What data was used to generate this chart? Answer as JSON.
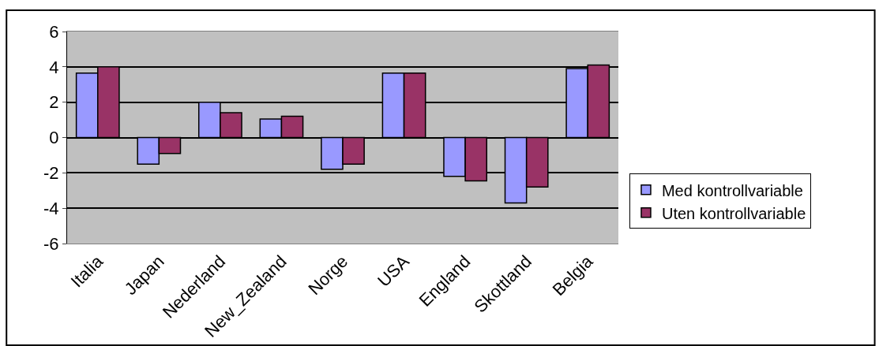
{
  "chart_data": {
    "type": "bar",
    "categories": [
      "Italia",
      "Japan",
      "Nederland",
      "New_Zealand",
      "Norge",
      "USA",
      "England",
      "Skottland",
      "Belgia"
    ],
    "series": [
      {
        "name": "Med kontrollvariable",
        "color": "#9999ff",
        "values": [
          3.65,
          -1.5,
          2.0,
          1.05,
          -1.8,
          3.65,
          -2.2,
          -3.7,
          3.9
        ]
      },
      {
        "name": "Uten kontrollvariable",
        "color": "#993366",
        "values": [
          4.0,
          -0.9,
          1.4,
          1.2,
          -1.5,
          3.65,
          -2.45,
          -2.8,
          4.1
        ]
      }
    ],
    "ylim": [
      -6,
      6
    ],
    "yticks": [
      -6,
      -4,
      -2,
      0,
      2,
      4,
      6
    ],
    "grid": "y",
    "legend": "right"
  }
}
